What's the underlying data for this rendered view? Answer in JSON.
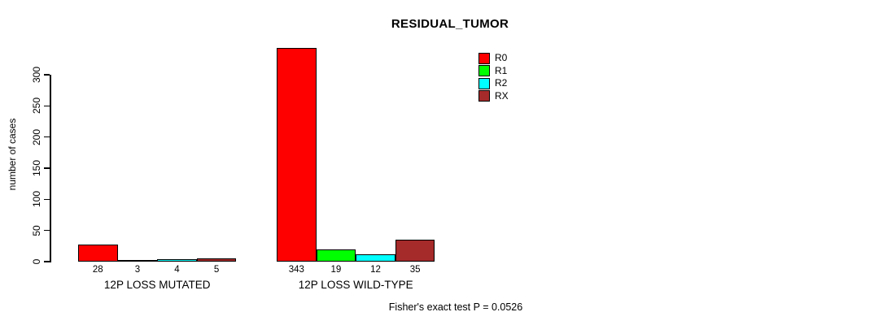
{
  "chart_data": {
    "type": "bar",
    "title": "RESIDUAL_TUMOR",
    "ylabel": "number of cases",
    "xlabel": "",
    "annotation": "Fisher's exact test P = 0.0526",
    "yticks": [
      0,
      50,
      100,
      150,
      200,
      250,
      300
    ],
    "ylim": [
      0,
      345
    ],
    "grid": false,
    "legend_position": "top-right",
    "series": [
      {
        "name": "R0",
        "color": "#FF0000"
      },
      {
        "name": "R1",
        "color": "#00FF00"
      },
      {
        "name": "R2",
        "color": "#00FFFF"
      },
      {
        "name": "RX",
        "color": "#A52A2A"
      }
    ],
    "groups": [
      {
        "label": "12P LOSS MUTATED",
        "values": [
          28,
          3,
          4,
          5
        ]
      },
      {
        "label": "12P LOSS WILD-TYPE",
        "values": [
          343,
          19,
          12,
          35
        ]
      }
    ]
  }
}
